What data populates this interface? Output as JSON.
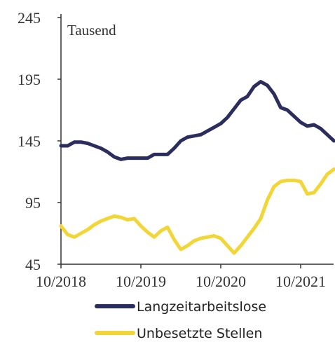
{
  "chart_data": {
    "type": "line",
    "annotation": "Tausend",
    "categories": [
      "10/2018",
      null,
      null,
      null,
      null,
      null,
      null,
      null,
      null,
      null,
      null,
      null,
      "10/2019",
      null,
      null,
      null,
      null,
      null,
      null,
      null,
      null,
      null,
      null,
      null,
      "10/2020",
      null,
      null,
      null,
      null,
      null,
      null,
      null,
      null,
      null,
      null,
      null,
      "10/2021",
      null,
      null,
      null,
      null,
      null
    ],
    "series": [
      {
        "name": "Langzeitarbeitslose",
        "color": "#2b2d5f",
        "values": [
          141,
          141,
          144,
          144,
          143,
          141,
          139,
          136,
          132,
          130,
          131,
          131,
          131,
          131,
          134,
          134,
          134,
          139,
          145,
          148,
          149,
          150,
          153,
          156,
          159,
          164,
          171,
          178,
          181,
          189,
          193,
          190,
          183,
          172,
          170,
          165,
          160,
          157,
          158,
          155,
          150,
          145
        ]
      },
      {
        "name": "Unbesetzte Stellen",
        "color": "#f2d638",
        "values": [
          76,
          69,
          67,
          70,
          73,
          77,
          80,
          82,
          84,
          83,
          81,
          82,
          76,
          71,
          67,
          72,
          75,
          65,
          57,
          60,
          64,
          66,
          67,
          68,
          66,
          60,
          54,
          60,
          67,
          74,
          82,
          97,
          108,
          112,
          113,
          113,
          112,
          102,
          103,
          110,
          118,
          122
        ]
      }
    ],
    "ylim": [
      45,
      245
    ],
    "yticks": [
      45,
      95,
      145,
      195,
      245
    ]
  }
}
